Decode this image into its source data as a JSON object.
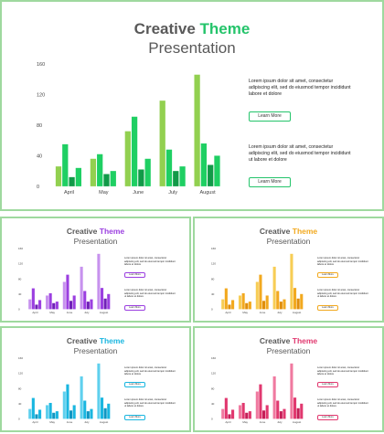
{
  "slides": [
    {
      "title_a": "Creative",
      "title_b": "Theme",
      "subtitle": "Presentation",
      "accent": "#25c46b",
      "colors": [
        "#92d050",
        "#1fcf63",
        "#119a48"
      ],
      "description1": "Lorem ipsum dolor sit amet, consectetur adipiscing elit, sed do eiusmod tempor incididunt labore et dolore",
      "description2": "Lorem ipsum dolor sit amet, consectetur adipiscing elit, sed do eiusmod tempor incididunt ut labore et dolore",
      "button1": "Learn More",
      "button2": "Learn More"
    },
    {
      "title_a": "Creative",
      "title_b": "Theme",
      "subtitle": "Presentation",
      "accent": "#9b3fe0",
      "colors": [
        "#c792ee",
        "#9b3fe0",
        "#6f1fb7"
      ],
      "description1": "Lorem ipsum dolor sit amet, consectetur adipiscing elit, sed do eiusmod tempor incididunt labore et dolore",
      "description2": "Lorem ipsum dolor sit amet, consectetur adipiscing elit, sed do eiusmod tempor incididunt ut labore et dolore",
      "button1": "Learn More",
      "button2": "Learn More"
    },
    {
      "title_a": "Creative",
      "title_b": "Theme",
      "subtitle": "Presentation",
      "accent": "#f2a91f",
      "colors": [
        "#f7cd55",
        "#f2a91f",
        "#e08e0b"
      ],
      "description1": "Lorem ipsum dolor sit amet, consectetur adipiscing elit, sed do eiusmod tempor incididunt labore et dolore",
      "description2": "Lorem ipsum dolor sit amet, consectetur adipiscing elit, sed do eiusmod tempor incididunt ut labore et dolore",
      "button1": "Learn More",
      "button2": "Learn More"
    },
    {
      "title_a": "Creative",
      "title_b": "Theme",
      "subtitle": "Presentation",
      "accent": "#19b6e0",
      "colors": [
        "#5fd0ee",
        "#19b6e0",
        "#0f96c2"
      ],
      "description1": "Lorem ipsum dolor sit amet, consectetur adipiscing elit, sed do eiusmod tempor incididunt labore et dolore",
      "description2": "Lorem ipsum dolor sit amet, consectetur adipiscing elit, sed do eiusmod tempor incididunt ut labore et dolore",
      "button1": "Learn More",
      "button2": "Learn More"
    },
    {
      "title_a": "Creative",
      "title_b": "Theme",
      "subtitle": "Presentation",
      "accent": "#e1386f",
      "colors": [
        "#f07aa0",
        "#e1386f",
        "#c51e57"
      ],
      "description1": "Lorem ipsum dolor sit amet, consectetur adipiscing elit, sed do eiusmod tempor incididunt labore et dolore",
      "description2": "Lorem ipsum dolor sit amet, consectetur adipiscing elit, sed do eiusmod tempor incididunt ut labore et dolore",
      "button1": "Learn More",
      "button2": "Learn More"
    }
  ],
  "chart_data": {
    "type": "bar",
    "categories": [
      "April",
      "May",
      "June",
      "July",
      "August"
    ],
    "ylim": [
      0,
      160
    ],
    "yticks": [
      "0",
      "40",
      "80",
      "120",
      "160"
    ],
    "series": [
      {
        "values": [
          26,
          36,
          72,
          112,
          146
        ]
      },
      {
        "values": [
          55,
          42,
          91,
          48,
          56
        ]
      },
      {
        "values": [
          12,
          16,
          22,
          20,
          28
        ]
      },
      {
        "values": [
          24,
          20,
          36,
          26,
          40
        ]
      }
    ]
  }
}
